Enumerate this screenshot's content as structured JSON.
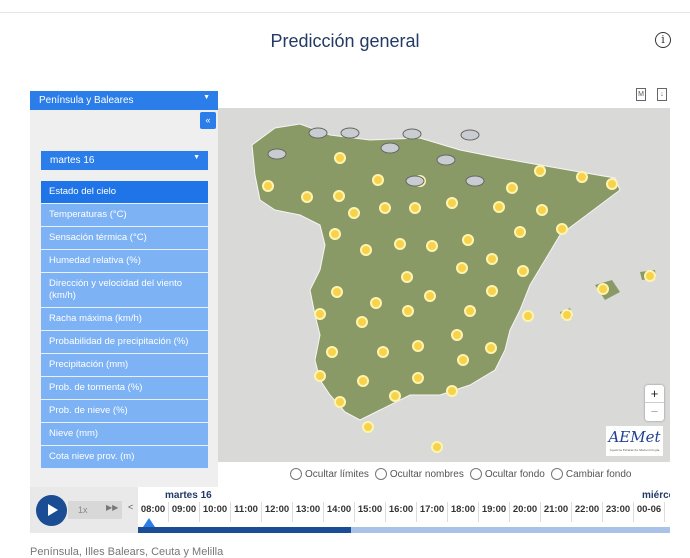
{
  "header": {
    "title": "Predicción general",
    "info_icon": "info-icon"
  },
  "tools": {
    "m_label": "M",
    "download_label": "↓"
  },
  "sidebar": {
    "region_select": "Península y Baleares",
    "collapse_label": "«",
    "day_select": "martes 16",
    "items": [
      {
        "label": "Estado del cielo",
        "active": true
      },
      {
        "label": "Temperaturas (°C)"
      },
      {
        "label": "Sensación térmica (°C)"
      },
      {
        "label": "Humedad relativa (%)"
      },
      {
        "label": "Dirección y velocidad del viento (km/h)"
      },
      {
        "label": "Racha máxima (km/h)"
      },
      {
        "label": "Probabilidad de precipitación (%)"
      },
      {
        "label": "Precipitación (mm)"
      },
      {
        "label": "Prob. de tormenta (%)"
      },
      {
        "label": "Prob. de nieve (%)"
      },
      {
        "label": "Nieve (mm)"
      },
      {
        "label": "Cota nieve prov. (m)"
      }
    ]
  },
  "map": {
    "zoom_in": "+",
    "zoom_out": "−",
    "logo": "AEMet",
    "logo_sub": "Agencia Estatal de Meteorología"
  },
  "options": [
    "Ocultar límites",
    "Ocultar nombres",
    "Ocultar fondo",
    "Cambiar fondo"
  ],
  "timeline": {
    "speed": "1x",
    "ff": "▶▶",
    "prev": "<",
    "day": "martes 16",
    "next_day": "miércoles",
    "hours": [
      "08:00",
      "09:00",
      "10:00",
      "11:00",
      "12:00",
      "13:00",
      "14:00",
      "15:00",
      "16:00",
      "17:00",
      "18:00",
      "19:00",
      "20:00",
      "21:00",
      "22:00",
      "23:00",
      "00-06"
    ],
    "loaded_percent": 40
  },
  "footer": "Península, Illes Balears, Ceuta y Melilla",
  "colors": {
    "accent": "#2b7de9",
    "menu": "#7db2f5",
    "dark": "#1a4d93",
    "land": "#8a9a66"
  }
}
